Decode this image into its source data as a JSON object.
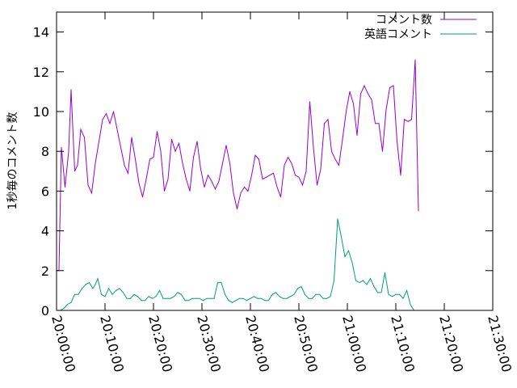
{
  "chart_data": {
    "type": "line",
    "title": "",
    "xlabel": "",
    "ylabel": "1秒毎のコメント数",
    "xlim": [
      "20:00:00",
      "21:30:00"
    ],
    "ylim": [
      0,
      15
    ],
    "xticks": [
      "20:00:00",
      "20:10:00",
      "20:20:00",
      "20:30:00",
      "20:40:00",
      "20:50:00",
      "21:00:00",
      "21:10:00",
      "21:20:00",
      "21:30:00"
    ],
    "yticks": [
      "0",
      "2",
      "4",
      "6",
      "8",
      "10",
      "12",
      "14"
    ],
    "grid": false,
    "legend": "top-right",
    "series": [
      {
        "name": "コメント数",
        "color": "#9400d3",
        "points": [
          [
            "20:00:00",
            2.0
          ],
          [
            "20:00:30",
            2.0
          ],
          [
            "20:01:00",
            8.2
          ],
          [
            "20:01:45",
            6.2
          ],
          [
            "20:02:30",
            8.0
          ],
          [
            "20:03:00",
            11.1
          ],
          [
            "20:03:45",
            7.0
          ],
          [
            "20:04:20",
            7.3
          ],
          [
            "20:05:00",
            9.1
          ],
          [
            "20:05:45",
            8.7
          ],
          [
            "20:06:30",
            6.3
          ],
          [
            "20:07:15",
            5.9
          ],
          [
            "20:08:00",
            7.4
          ],
          [
            "20:08:45",
            8.5
          ],
          [
            "20:09:30",
            9.6
          ],
          [
            "20:10:15",
            9.9
          ],
          [
            "20:11:00",
            9.4
          ],
          [
            "20:11:45",
            10.0
          ],
          [
            "20:12:30",
            9.1
          ],
          [
            "20:13:15",
            8.2
          ],
          [
            "20:14:00",
            7.3
          ],
          [
            "20:14:45",
            6.9
          ],
          [
            "20:15:30",
            8.7
          ],
          [
            "20:16:15",
            7.6
          ],
          [
            "20:17:00",
            6.4
          ],
          [
            "20:17:45",
            5.7
          ],
          [
            "20:18:30",
            6.6
          ],
          [
            "20:19:15",
            7.6
          ],
          [
            "20:20:00",
            7.7
          ],
          [
            "20:20:45",
            9.0
          ],
          [
            "20:21:30",
            8.0
          ],
          [
            "20:22:15",
            6.0
          ],
          [
            "20:23:00",
            6.6
          ],
          [
            "20:23:45",
            8.6
          ],
          [
            "20:24:30",
            8.0
          ],
          [
            "20:25:15",
            8.4
          ],
          [
            "20:26:00",
            7.4
          ],
          [
            "20:26:45",
            6.6
          ],
          [
            "20:27:30",
            6.0
          ],
          [
            "20:28:15",
            7.7
          ],
          [
            "20:29:00",
            8.5
          ],
          [
            "20:29:45",
            7.1
          ],
          [
            "20:30:30",
            6.2
          ],
          [
            "20:31:15",
            6.8
          ],
          [
            "20:32:00",
            6.5
          ],
          [
            "20:32:45",
            6.1
          ],
          [
            "20:33:30",
            6.5
          ],
          [
            "20:34:15",
            7.4
          ],
          [
            "20:35:00",
            8.3
          ],
          [
            "20:35:45",
            7.4
          ],
          [
            "20:36:30",
            5.9
          ],
          [
            "20:37:15",
            5.1
          ],
          [
            "20:38:00",
            5.9
          ],
          [
            "20:38:45",
            6.2
          ],
          [
            "20:39:30",
            6.0
          ],
          [
            "20:40:15",
            6.8
          ],
          [
            "20:41:00",
            7.8
          ],
          [
            "20:41:45",
            7.6
          ],
          [
            "20:42:30",
            6.6
          ],
          [
            "20:43:15",
            6.7
          ],
          [
            "20:44:00",
            6.8
          ],
          [
            "20:44:45",
            6.9
          ],
          [
            "20:45:30",
            6.2
          ],
          [
            "20:46:15",
            5.7
          ],
          [
            "20:47:00",
            7.3
          ],
          [
            "20:47:45",
            7.7
          ],
          [
            "20:48:30",
            7.4
          ],
          [
            "20:49:15",
            6.8
          ],
          [
            "20:50:00",
            6.7
          ],
          [
            "20:50:45",
            6.3
          ],
          [
            "20:51:30",
            7.0
          ],
          [
            "20:52:15",
            10.5
          ],
          [
            "20:53:00",
            8.2
          ],
          [
            "20:53:45",
            6.3
          ],
          [
            "20:54:30",
            7.1
          ],
          [
            "20:55:15",
            9.4
          ],
          [
            "20:56:00",
            9.6
          ],
          [
            "20:56:45",
            8.0
          ],
          [
            "20:57:30",
            7.6
          ],
          [
            "20:58:15",
            7.3
          ],
          [
            "20:59:00",
            8.6
          ],
          [
            "20:59:45",
            10.0
          ],
          [
            "21:00:30",
            11.0
          ],
          [
            "21:01:15",
            10.4
          ],
          [
            "21:02:00",
            8.8
          ],
          [
            "21:02:45",
            10.9
          ],
          [
            "21:03:30",
            11.3
          ],
          [
            "21:04:15",
            10.9
          ],
          [
            "21:05:00",
            10.6
          ],
          [
            "21:05:45",
            9.4
          ],
          [
            "21:06:30",
            9.4
          ],
          [
            "21:07:15",
            8.0
          ],
          [
            "21:08:00",
            10.1
          ],
          [
            "21:08:45",
            11.2
          ],
          [
            "21:09:30",
            11.3
          ],
          [
            "21:10:15",
            8.5
          ],
          [
            "21:11:00",
            6.8
          ],
          [
            "21:11:45",
            9.6
          ],
          [
            "21:12:30",
            9.5
          ],
          [
            "21:13:15",
            9.6
          ],
          [
            "21:14:00",
            12.6
          ],
          [
            "21:14:40",
            5.0
          ]
        ]
      },
      {
        "name": "英語コメント",
        "color": "#009e73",
        "points": [
          [
            "20:00:00",
            0.0
          ],
          [
            "20:00:45",
            0.0
          ],
          [
            "20:01:30",
            0.1
          ],
          [
            "20:02:15",
            0.3
          ],
          [
            "20:03:00",
            0.4
          ],
          [
            "20:03:45",
            0.8
          ],
          [
            "20:04:30",
            0.8
          ],
          [
            "20:05:15",
            1.1
          ],
          [
            "20:06:00",
            1.3
          ],
          [
            "20:06:45",
            1.4
          ],
          [
            "20:07:30",
            1.1
          ],
          [
            "20:08:00",
            1.3
          ],
          [
            "20:08:30",
            1.6
          ],
          [
            "20:09:15",
            0.8
          ],
          [
            "20:10:00",
            0.7
          ],
          [
            "20:10:45",
            1.1
          ],
          [
            "20:11:30",
            0.8
          ],
          [
            "20:12:15",
            1.0
          ],
          [
            "20:13:00",
            1.1
          ],
          [
            "20:13:45",
            0.9
          ],
          [
            "20:14:30",
            0.6
          ],
          [
            "20:15:15",
            0.6
          ],
          [
            "20:16:00",
            0.8
          ],
          [
            "20:16:45",
            0.7
          ],
          [
            "20:17:30",
            0.5
          ],
          [
            "20:18:15",
            0.5
          ],
          [
            "20:19:00",
            0.7
          ],
          [
            "20:19:45",
            0.6
          ],
          [
            "20:20:30",
            0.7
          ],
          [
            "20:21:15",
            1.0
          ],
          [
            "20:22:00",
            0.6
          ],
          [
            "20:22:45",
            0.6
          ],
          [
            "20:23:30",
            0.6
          ],
          [
            "20:24:15",
            0.7
          ],
          [
            "20:25:00",
            0.9
          ],
          [
            "20:25:45",
            0.8
          ],
          [
            "20:26:30",
            0.5
          ],
          [
            "20:27:15",
            0.5
          ],
          [
            "20:28:00",
            0.6
          ],
          [
            "20:28:45",
            0.6
          ],
          [
            "20:29:30",
            0.6
          ],
          [
            "20:30:15",
            0.5
          ],
          [
            "20:31:00",
            0.6
          ],
          [
            "20:31:45",
            0.6
          ],
          [
            "20:32:30",
            0.6
          ],
          [
            "20:33:15",
            1.4
          ],
          [
            "20:34:00",
            1.4
          ],
          [
            "20:34:45",
            0.8
          ],
          [
            "20:35:30",
            0.5
          ],
          [
            "20:36:15",
            0.4
          ],
          [
            "20:37:00",
            0.5
          ],
          [
            "20:37:45",
            0.6
          ],
          [
            "20:38:30",
            0.6
          ],
          [
            "20:39:15",
            0.5
          ],
          [
            "20:40:00",
            0.6
          ],
          [
            "20:40:45",
            0.7
          ],
          [
            "20:41:30",
            0.6
          ],
          [
            "20:42:15",
            0.6
          ],
          [
            "20:43:00",
            0.5
          ],
          [
            "20:43:45",
            0.5
          ],
          [
            "20:44:30",
            0.8
          ],
          [
            "20:45:15",
            0.9
          ],
          [
            "20:46:00",
            0.7
          ],
          [
            "20:46:45",
            0.6
          ],
          [
            "20:47:30",
            0.6
          ],
          [
            "20:48:15",
            0.7
          ],
          [
            "20:49:00",
            0.8
          ],
          [
            "20:49:45",
            1.1
          ],
          [
            "20:50:30",
            1.2
          ],
          [
            "20:51:15",
            0.8
          ],
          [
            "20:52:00",
            0.6
          ],
          [
            "20:52:45",
            0.6
          ],
          [
            "20:53:30",
            0.8
          ],
          [
            "20:54:15",
            0.8
          ],
          [
            "20:55:00",
            0.6
          ],
          [
            "20:55:45",
            0.6
          ],
          [
            "20:56:30",
            0.7
          ],
          [
            "20:57:15",
            1.5
          ],
          [
            "20:58:00",
            4.6
          ],
          [
            "20:58:45",
            3.7
          ],
          [
            "20:59:30",
            2.7
          ],
          [
            "21:00:15",
            3.0
          ],
          [
            "21:01:00",
            2.4
          ],
          [
            "21:01:45",
            1.5
          ],
          [
            "21:02:30",
            1.4
          ],
          [
            "21:03:15",
            1.5
          ],
          [
            "21:04:00",
            1.3
          ],
          [
            "21:04:45",
            1.6
          ],
          [
            "21:05:30",
            1.2
          ],
          [
            "21:06:15",
            0.9
          ],
          [
            "21:07:00",
            0.9
          ],
          [
            "21:07:45",
            1.9
          ],
          [
            "21:08:30",
            0.8
          ],
          [
            "21:09:15",
            0.7
          ],
          [
            "21:10:00",
            0.8
          ],
          [
            "21:10:45",
            0.8
          ],
          [
            "21:11:30",
            0.6
          ],
          [
            "21:12:15",
            1.0
          ],
          [
            "21:13:00",
            0.3
          ],
          [
            "21:13:45",
            0.0
          ],
          [
            "21:14:40",
            0.0
          ]
        ]
      }
    ]
  }
}
